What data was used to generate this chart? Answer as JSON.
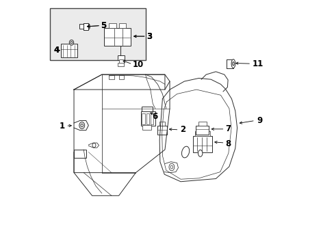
{
  "bg_color": "#ffffff",
  "line_color": "#2a2a2a",
  "inset_bg": "#ebebeb",
  "inset_border": "#444444",
  "font_size": 8.5,
  "figsize": [
    4.89,
    3.6
  ],
  "dpi": 100,
  "labels": {
    "1": [
      0.085,
      0.485,
      0.13,
      0.485
    ],
    "2": [
      0.555,
      0.475,
      0.505,
      0.472
    ],
    "3": [
      0.425,
      0.875,
      0.378,
      0.868
    ],
    "4": [
      0.04,
      0.81,
      0.072,
      0.81
    ],
    "5": [
      0.235,
      0.902,
      0.19,
      0.892
    ],
    "6": [
      0.45,
      0.56,
      0.437,
      0.548
    ],
    "7": [
      0.735,
      0.475,
      0.7,
      0.472
    ],
    "8": [
      0.74,
      0.41,
      0.697,
      0.42
    ],
    "9": [
      0.87,
      0.51,
      0.818,
      0.498
    ],
    "10": [
      0.36,
      0.748,
      0.32,
      0.745
    ],
    "11": [
      0.85,
      0.745,
      0.808,
      0.745
    ]
  }
}
